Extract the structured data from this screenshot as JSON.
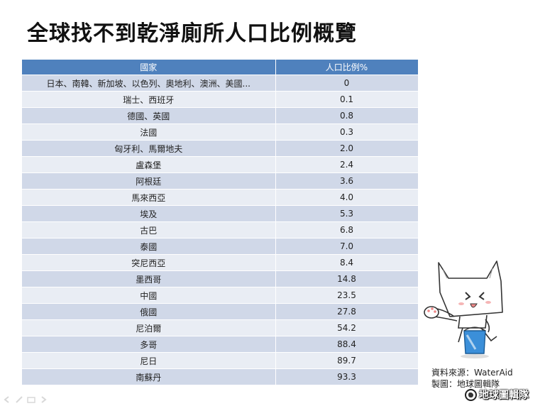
{
  "title": "全球找不到乾淨廁所人口比例概覽",
  "table": {
    "headers": [
      "國家",
      "人口比例%"
    ],
    "rows": [
      {
        "country": "日本、南韓、新加坡、以色列、奧地利、澳洲、美國...",
        "value": "0"
      },
      {
        "country": "瑞士、西班牙",
        "value": "0.1"
      },
      {
        "country": "德國、英國",
        "value": "0.8"
      },
      {
        "country": "法國",
        "value": "0.3"
      },
      {
        "country": "匈牙利、馬爾地夫",
        "value": "2.0"
      },
      {
        "country": "盧森堡",
        "value": "2.4"
      },
      {
        "country": "阿根廷",
        "value": "3.6"
      },
      {
        "country": "馬來西亞",
        "value": "4.0"
      },
      {
        "country": "埃及",
        "value": "5.3"
      },
      {
        "country": "古巴",
        "value": "6.8"
      },
      {
        "country": "泰國",
        "value": "7.0"
      },
      {
        "country": "突尼西亞",
        "value": "8.4"
      },
      {
        "country": "墨西哥",
        "value": "14.8"
      },
      {
        "country": "中國",
        "value": "23.5"
      },
      {
        "country": "俄國",
        "value": "27.8"
      },
      {
        "country": "尼泊爾",
        "value": "54.2"
      },
      {
        "country": "多哥",
        "value": "88.4"
      },
      {
        "country": "尼日",
        "value": "89.7"
      },
      {
        "country": "南蘇丹",
        "value": "93.3"
      }
    ]
  },
  "credits": {
    "source": "資料來源：WaterAid",
    "maker": "製圖：地球圖輯隊"
  },
  "watermark": "地球圖輯隊",
  "colors": {
    "header": "#4f81bd",
    "row_odd": "#d0d8e8",
    "row_even": "#e9edf4"
  },
  "icons": {
    "mascot": "cat-mascot-illustration",
    "nav": [
      "nav-back-icon",
      "nav-pen-icon",
      "nav-slides-icon",
      "nav-forward-icon"
    ],
    "watermark": "globe-icon"
  }
}
